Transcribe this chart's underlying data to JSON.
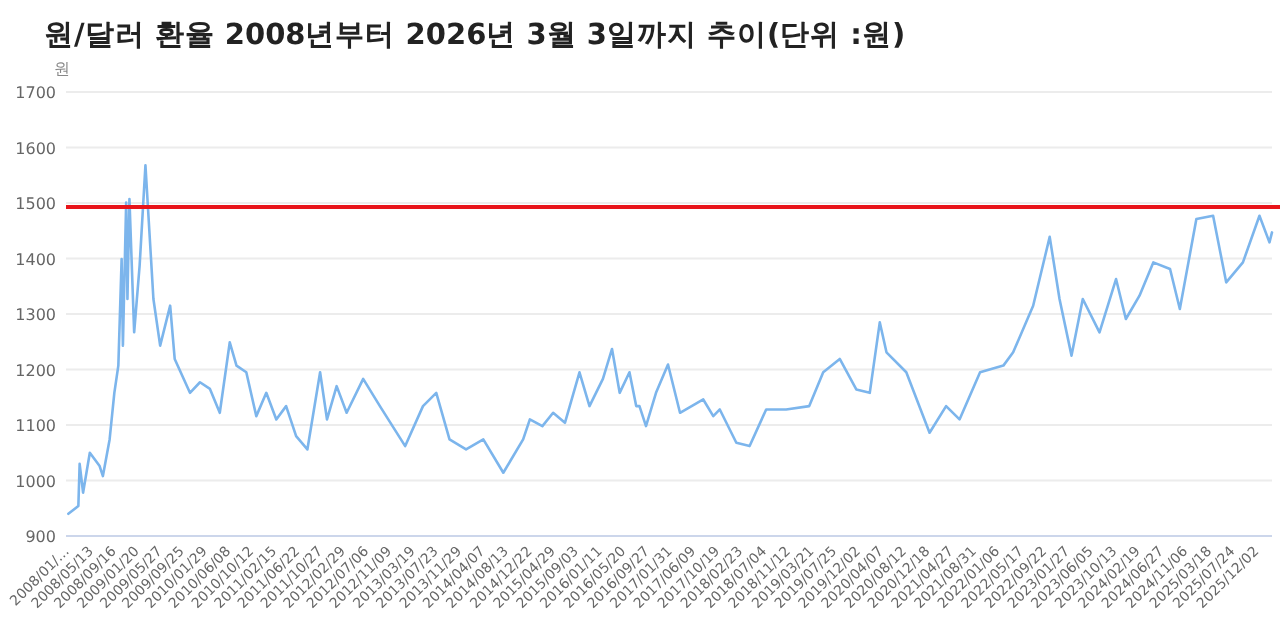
{
  "chart_data": {
    "type": "line",
    "title": "원/달러 환율 2008년부터 2026년 3월 3일까지 추이(단위 :원)",
    "ylabel": "원",
    "xlim": [
      "2008-01-02",
      "2026-03-03"
    ],
    "ylim": [
      900,
      1700
    ],
    "yticks": [
      900,
      1000,
      1100,
      1200,
      1300,
      1400,
      1500,
      1600,
      1700
    ],
    "grid": "y",
    "xticks": [
      {
        "value": "2008-01-02",
        "label": "2008/01/…"
      },
      {
        "value": "2008-05-13",
        "label": "2008/05/13"
      },
      {
        "value": "2008-09-16",
        "label": "2008/09/16"
      },
      {
        "value": "2009-01-20",
        "label": "2009/01/20"
      },
      {
        "value": "2009-05-27",
        "label": "2009/05/27"
      },
      {
        "value": "2009-09-25",
        "label": "2009/09/25"
      },
      {
        "value": "2010-01-29",
        "label": "2010/01/29"
      },
      {
        "value": "2010-06-08",
        "label": "2010/06/08"
      },
      {
        "value": "2010-10-12",
        "label": "2010/10/12"
      },
      {
        "value": "2011-02-15",
        "label": "2011/02/15"
      },
      {
        "value": "2011-06-22",
        "label": "2011/06/22"
      },
      {
        "value": "2011-10-27",
        "label": "2011/10/27"
      },
      {
        "value": "2012-02-29",
        "label": "2012/02/29"
      },
      {
        "value": "2012-07-06",
        "label": "2012/07/06"
      },
      {
        "value": "2012-11-09",
        "label": "2012/11/09"
      },
      {
        "value": "2013-03-19",
        "label": "2013/03/19"
      },
      {
        "value": "2013-07-23",
        "label": "2013/07/23"
      },
      {
        "value": "2013-11-29",
        "label": "2013/11/29"
      },
      {
        "value": "2014-04-07",
        "label": "2014/04/07"
      },
      {
        "value": "2014-08-13",
        "label": "2014/08/13"
      },
      {
        "value": "2014-12-22",
        "label": "2014/12/22"
      },
      {
        "value": "2015-04-29",
        "label": "2015/04/29"
      },
      {
        "value": "2015-09-03",
        "label": "2015/09/03"
      },
      {
        "value": "2016-01-11",
        "label": "2016/01/11"
      },
      {
        "value": "2016-05-20",
        "label": "2016/05/20"
      },
      {
        "value": "2016-09-27",
        "label": "2016/09/27"
      },
      {
        "value": "2017-01-31",
        "label": "2017/01/31"
      },
      {
        "value": "2017-06-09",
        "label": "2017/06/09"
      },
      {
        "value": "2017-10-19",
        "label": "2017/10/19"
      },
      {
        "value": "2018-02-23",
        "label": "2018/02/23"
      },
      {
        "value": "2018-07-04",
        "label": "2018/07/04"
      },
      {
        "value": "2018-11-12",
        "label": "2018/11/12"
      },
      {
        "value": "2019-03-21",
        "label": "2019/03/21"
      },
      {
        "value": "2019-07-25",
        "label": "2019/07/25"
      },
      {
        "value": "2019-12-02",
        "label": "2019/12/02"
      },
      {
        "value": "2020-04-07",
        "label": "2020/04/07"
      },
      {
        "value": "2020-08-12",
        "label": "2020/08/12"
      },
      {
        "value": "2020-12-18",
        "label": "2020/12/18"
      },
      {
        "value": "2021-04-27",
        "label": "2021/04/27"
      },
      {
        "value": "2021-08-31",
        "label": "2021/08/31"
      },
      {
        "value": "2022-01-06",
        "label": "2022/01/06"
      },
      {
        "value": "2022-05-17",
        "label": "2022/05/17"
      },
      {
        "value": "2022-09-22",
        "label": "2022/09/22"
      },
      {
        "value": "2023-01-27",
        "label": "2023/01/27"
      },
      {
        "value": "2023-06-05",
        "label": "2023/06/05"
      },
      {
        "value": "2023-10-13",
        "label": "2023/10/13"
      },
      {
        "value": "2024-02-19",
        "label": "2024/02/19"
      },
      {
        "value": "2024-06-27",
        "label": "2024/06/27"
      },
      {
        "value": "2024-11-06",
        "label": "2024/11/06"
      },
      {
        "value": "2025-03-18",
        "label": "2025/03/18"
      },
      {
        "value": "2025-07-24",
        "label": "2025/07/24"
      },
      {
        "value": "2025-12-02",
        "label": "2025/12/02"
      }
    ],
    "x": [
      "2008-01-15",
      "2008-03-10",
      "2008-03-17",
      "2008-04-05",
      "2008-05-12",
      "2008-07-05",
      "2008-07-23",
      "2008-08-29",
      "2008-09-24",
      "2008-10-16",
      "2008-11-03",
      "2008-11-10",
      "2008-11-28",
      "2008-12-05",
      "2008-12-16",
      "2009-01-11",
      "2009-02-10",
      "2009-03-14",
      "2009-04-27",
      "2009-06-03",
      "2009-07-28",
      "2009-08-22",
      "2009-11-14",
      "2010-01-08",
      "2010-03-04",
      "2010-04-27",
      "2010-06-21",
      "2010-07-28",
      "2010-09-20",
      "2010-11-14",
      "2011-01-08",
      "2011-03-04",
      "2011-04-27",
      "2011-06-21",
      "2011-08-22",
      "2011-10-31",
      "2011-12-08",
      "2012-01-30",
      "2012-03-25",
      "2012-06-24",
      "2012-09-24",
      "2013-02-10",
      "2013-05-19",
      "2013-07-31",
      "2013-10-12",
      "2014-01-11",
      "2014-04-16",
      "2014-08-04",
      "2014-11-21",
      "2014-12-28",
      "2015-03-07",
      "2015-05-05",
      "2015-07-09",
      "2015-09-27",
      "2015-11-21",
      "2016-02-03",
      "2016-03-24",
      "2016-05-05",
      "2016-06-28",
      "2016-08-04",
      "2016-08-22",
      "2016-09-27",
      "2016-11-21",
      "2017-01-26",
      "2017-04-02",
      "2017-08-08",
      "2017-10-02",
      "2017-11-07",
      "2018-02-06",
      "2018-04-20",
      "2018-07-20",
      "2018-11-07",
      "2019-03-14",
      "2019-05-30",
      "2019-08-29",
      "2019-11-28",
      "2020-02-10",
      "2020-04-05",
      "2020-05-12",
      "2020-08-29",
      "2021-01-04",
      "2021-04-05",
      "2021-06-18",
      "2021-10-09",
      "2022-02-14",
      "2022-04-09",
      "2022-07-28",
      "2022-10-27",
      "2022-12-20",
      "2023-02-24",
      "2023-04-27",
      "2023-07-28",
      "2023-10-27",
      "2023-12-20",
      "2024-03-04",
      "2024-05-19",
      "2024-08-19",
      "2024-10-12",
      "2025-01-11",
      "2025-04-13",
      "2025-06-24",
      "2025-09-24",
      "2025-12-24",
      "2026-02-17",
      "2026-03-03"
    ],
    "series": [
      {
        "color": "#7cb5ec",
        "values": [
          940,
          954,
          1030,
          978,
          1050,
          1026,
          1008,
          1074,
          1158,
          1207,
          1399,
          1243,
          1501,
          1327,
          1507,
          1267,
          1387,
          1568,
          1327,
          1243,
          1315,
          1219,
          1158,
          1177,
          1165,
          1122,
          1249,
          1207,
          1195,
          1116,
          1158,
          1110,
          1134,
          1080,
          1056,
          1195,
          1110,
          1170,
          1122,
          1183,
          1134,
          1062,
          1134,
          1158,
          1074,
          1056,
          1074,
          1014,
          1074,
          1110,
          1098,
          1122,
          1104,
          1195,
          1134,
          1183,
          1237,
          1158,
          1195,
          1134,
          1134,
          1098,
          1158,
          1209,
          1122,
          1146,
          1116,
          1128,
          1068,
          1062,
          1128,
          1128,
          1134,
          1195,
          1219,
          1164,
          1158,
          1285,
          1231,
          1195,
          1086,
          1134,
          1110,
          1195,
          1207,
          1231,
          1315,
          1439,
          1327,
          1225,
          1327,
          1267,
          1363,
          1291,
          1333,
          1393,
          1381,
          1309,
          1471,
          1477,
          1357,
          1393,
          1477,
          1429,
          1447
        ]
      }
    ],
    "ref_lines": [
      {
        "axis": "y",
        "value": 1493,
        "color": "#e8141a"
      }
    ]
  }
}
